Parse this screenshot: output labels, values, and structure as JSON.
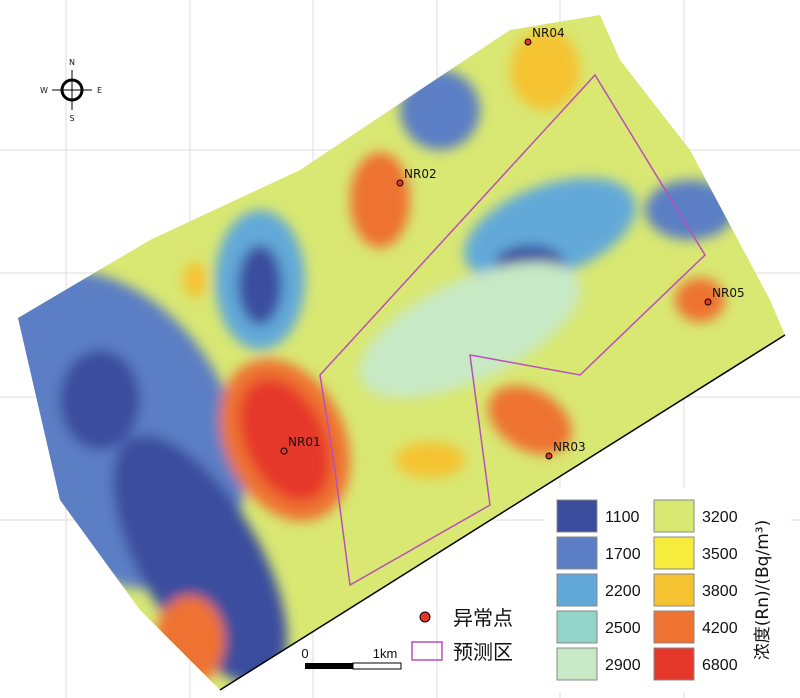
{
  "compass": {
    "north": "N",
    "south": "S",
    "east": "E",
    "west": "W"
  },
  "points": [
    {
      "label": "NR01"
    },
    {
      "label": "NR02"
    },
    {
      "label": "NR03"
    },
    {
      "label": "NR04"
    },
    {
      "label": "NR05"
    }
  ],
  "legend": {
    "title": "浓度(Rn)/(Bq/m³)",
    "classes": [
      {
        "value": 1100,
        "color": "#3b4e9e"
      },
      {
        "value": 1700,
        "color": "#5b7ec4"
      },
      {
        "value": 2200,
        "color": "#62a9d9"
      },
      {
        "value": 2500,
        "color": "#92d4c9"
      },
      {
        "value": 2900,
        "color": "#c8e9c5"
      },
      {
        "value": 3200,
        "color": "#d9e873"
      },
      {
        "value": 3500,
        "color": "#f6ec3c"
      },
      {
        "value": 3800,
        "color": "#f5c232"
      },
      {
        "value": 4200,
        "color": "#ee7232"
      },
      {
        "value": 6800,
        "color": "#e6382a"
      }
    ],
    "anomaly_label": "异常点",
    "zone_label": "预测区"
  },
  "scale_bar": {
    "start": "0",
    "end": "1km"
  }
}
